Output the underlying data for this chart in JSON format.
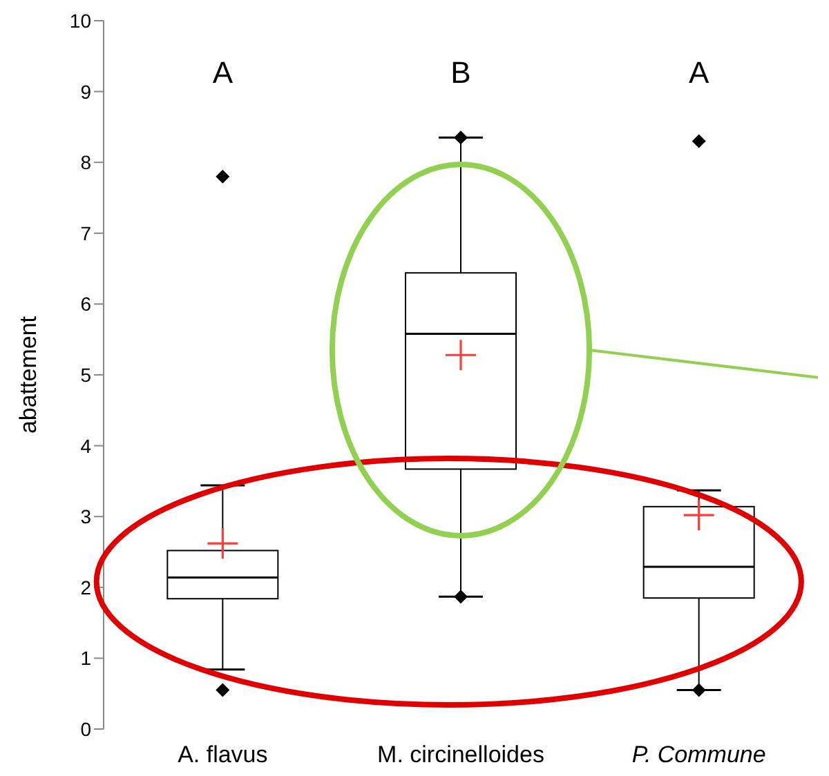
{
  "chart_data": {
    "type": "box",
    "ylabel": "abattement",
    "categories": [
      "A. flavus",
      "M. circinelloides",
      "P. Commune"
    ],
    "ylim": [
      0,
      10
    ],
    "yticks": [
      0,
      1,
      2,
      3,
      4,
      5,
      6,
      7,
      8,
      9,
      10
    ],
    "boxes": [
      {
        "low": 0.84,
        "q1": 1.84,
        "median": 2.14,
        "q3": 2.52,
        "high": 3.44,
        "mean": 2.62,
        "outliers": [
          0.55,
          7.8
        ]
      },
      {
        "low": 1.87,
        "q1": 3.67,
        "median": 5.58,
        "q3": 6.44,
        "high": 8.35,
        "mean": 5.28,
        "outliers": [
          1.87,
          8.35
        ]
      },
      {
        "low": 0.55,
        "q1": 1.85,
        "median": 2.29,
        "q3": 3.14,
        "high": 3.37,
        "mean": 3.02,
        "outliers": [
          0.55,
          8.3
        ]
      }
    ],
    "annotations": [
      "A",
      "B",
      "A"
    ]
  }
}
